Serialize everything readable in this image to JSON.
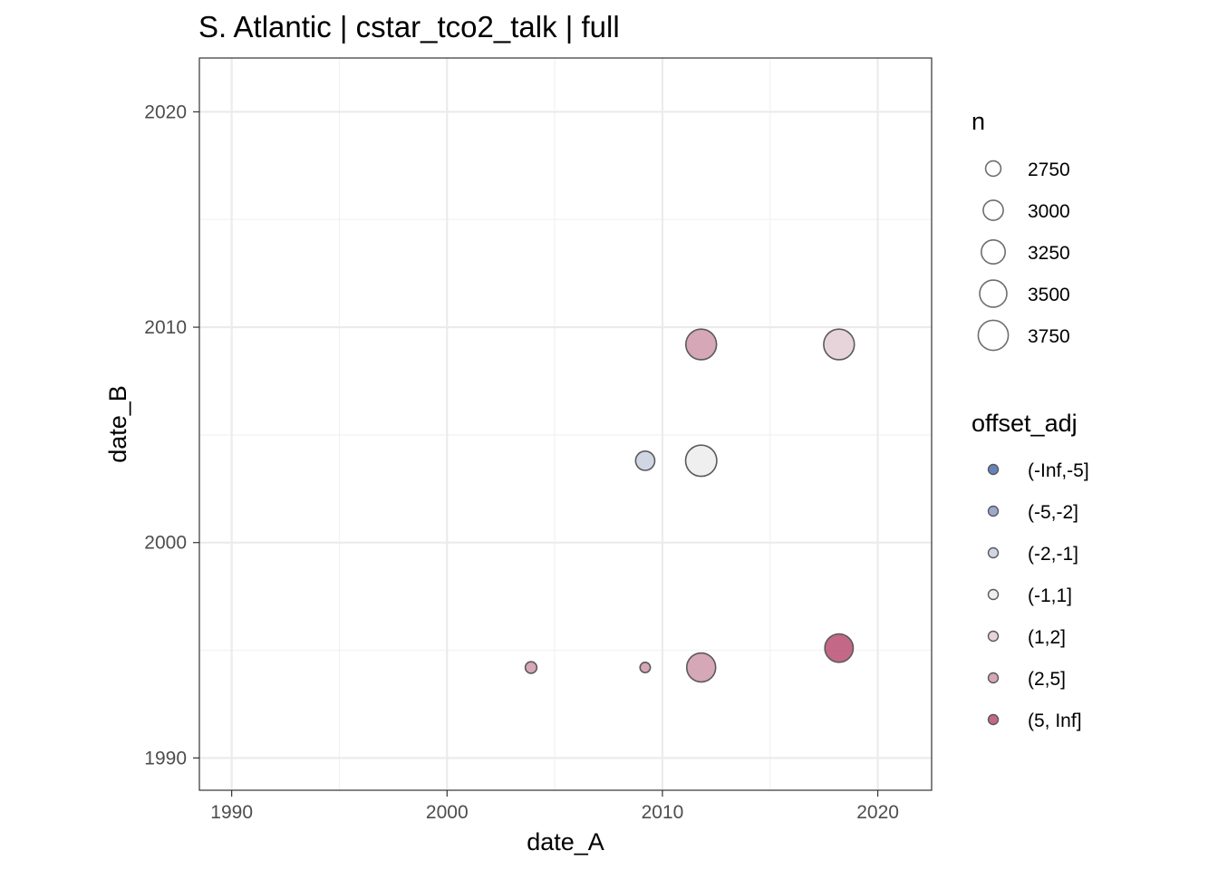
{
  "chart_data": {
    "type": "scatter",
    "title": "S. Atlantic | cstar_tco2_talk | full",
    "xlabel": "date_A",
    "ylabel": "date_B",
    "xlim": [
      1988.5,
      2022.5
    ],
    "ylim": [
      1988.5,
      2022.5
    ],
    "x_ticks": [
      1990,
      2000,
      2010,
      2020
    ],
    "y_ticks": [
      1990,
      2000,
      2010,
      2020
    ],
    "grid": true,
    "points": [
      {
        "x": 2003.9,
        "y": 1994.2,
        "n": 2600,
        "offset_adj": "(2,5]"
      },
      {
        "x": 2009.2,
        "y": 1994.2,
        "n": 2560,
        "offset_adj": "(2,5]"
      },
      {
        "x": 2011.8,
        "y": 1994.2,
        "n": 3650,
        "offset_adj": "(2,5]"
      },
      {
        "x": 2018.2,
        "y": 1995.1,
        "n": 3600,
        "offset_adj": "(5, Inf]"
      },
      {
        "x": 2009.2,
        "y": 2003.8,
        "n": 2950,
        "offset_adj": "(-2,-1]"
      },
      {
        "x": 2011.8,
        "y": 2003.8,
        "n": 3850,
        "offset_adj": "(-1,1]"
      },
      {
        "x": 2011.8,
        "y": 2009.2,
        "n": 3800,
        "offset_adj": "(2,5]"
      },
      {
        "x": 2018.2,
        "y": 2009.2,
        "n": 3800,
        "offset_adj": "(1,2]"
      }
    ],
    "legend_size": {
      "title": "n",
      "entries": [
        {
          "label": "2750",
          "n": 2750
        },
        {
          "label": "3000",
          "n": 3000
        },
        {
          "label": "3250",
          "n": 3250
        },
        {
          "label": "3500",
          "n": 3500
        },
        {
          "label": "3750",
          "n": 3750
        }
      ]
    },
    "legend_color": {
      "title": "offset_adj",
      "entries": [
        {
          "label": "(-Inf,-5]",
          "color": "#4a6fae"
        },
        {
          "label": "(-5,-2]",
          "color": "#8b9ac4"
        },
        {
          "label": "(-2,-1]",
          "color": "#c9cfe0"
        },
        {
          "label": "(-1,1]",
          "color": "#ececec"
        },
        {
          "label": "(1,2]",
          "color": "#e3ccd4"
        },
        {
          "label": "(2,5]",
          "color": "#cf98a9"
        },
        {
          "label": "(5, Inf]",
          "color": "#b84d72"
        }
      ]
    },
    "legend_position": "right"
  }
}
